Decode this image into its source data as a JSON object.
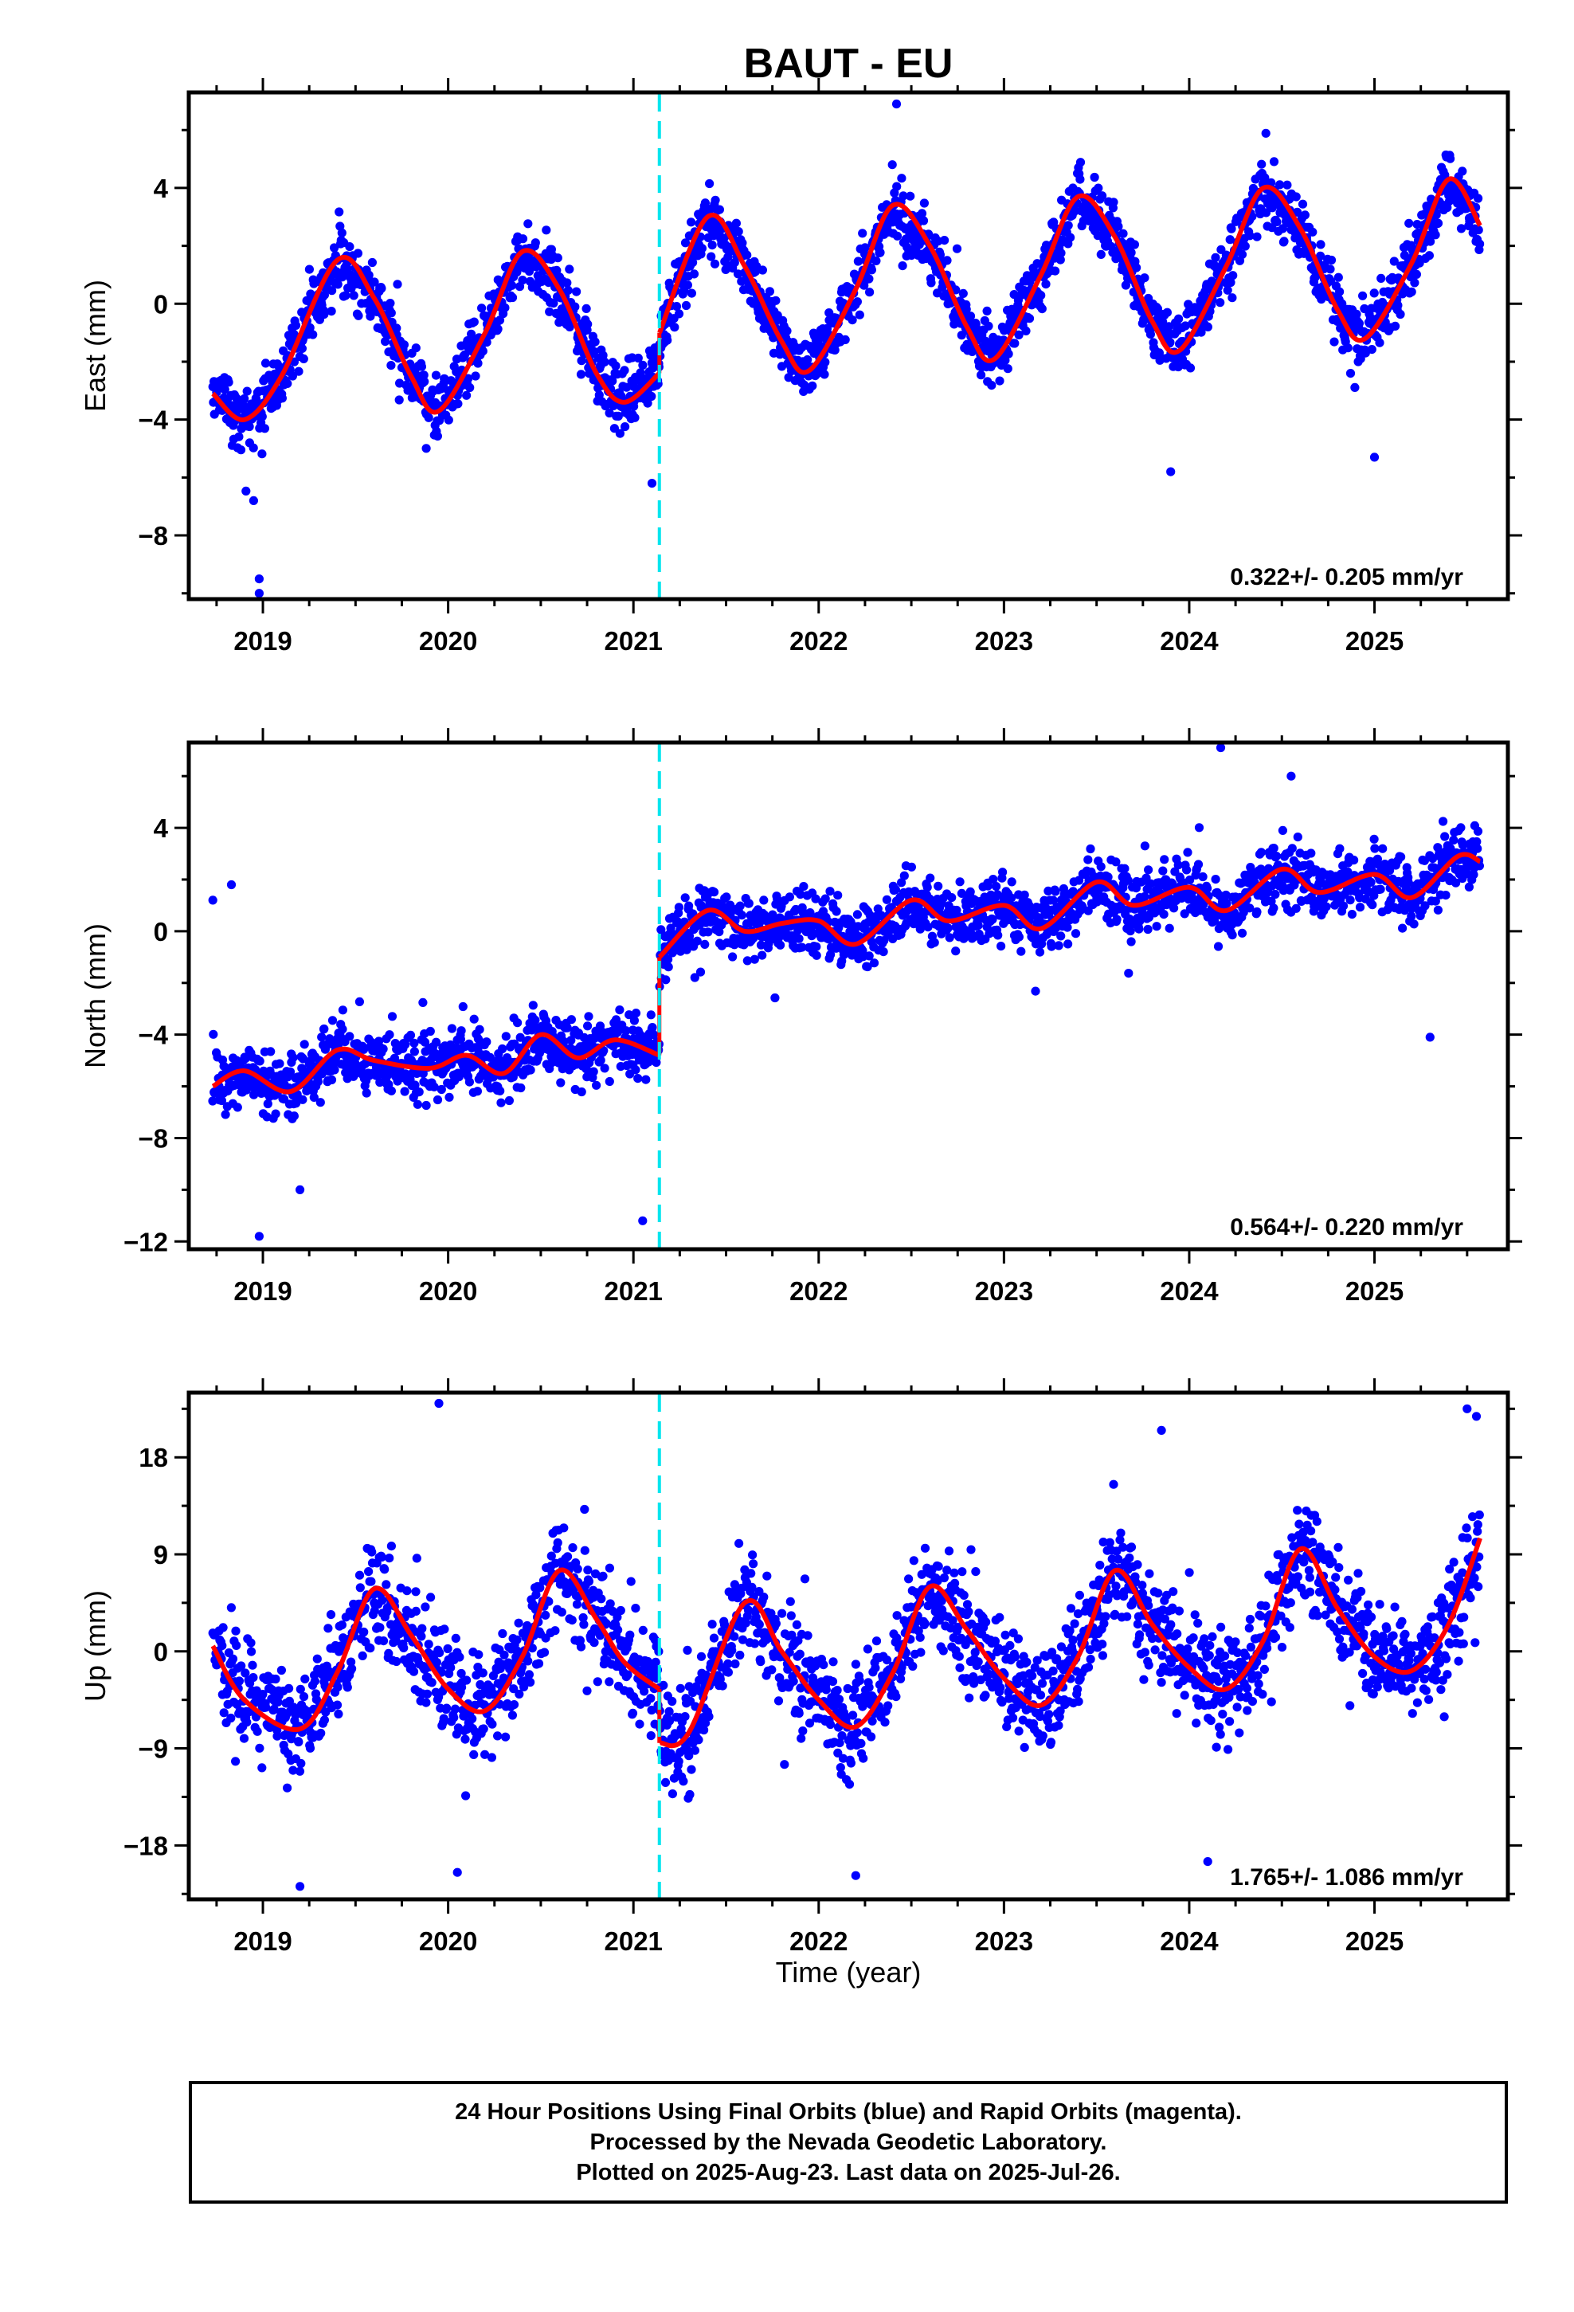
{
  "title": "BAUT - EU",
  "xlabel": "Time (year)",
  "colors": {
    "points": "#0000ff",
    "fit": "#ff0000",
    "offset_line": "#00e5ee",
    "frame": "#000000"
  },
  "caption": [
    "24 Hour Positions Using Final Orbits (blue) and Rapid Orbits (magenta).",
    "Processed by the Nevada Geodetic Laboratory.",
    "Plotted on 2025-Aug-23. Last data on 2025-Jul-26."
  ],
  "chart_data": [
    {
      "type": "scatter",
      "ylabel": "East (mm)",
      "xlim": [
        2018.6,
        2025.72
      ],
      "ylim": [
        -10.2,
        7.3
      ],
      "yticks": [
        4,
        0,
        -4,
        -8
      ],
      "xticks": [
        2019,
        2020,
        2021,
        2022,
        2023,
        2024,
        2025
      ],
      "rate": "0.322+/- 0.205 mm/yr",
      "offset_epoch": 2021.14,
      "data_start": 2018.73,
      "data_end": 2025.57,
      "series": [
        {
          "name": "",
          "fit": {
            "x": [
              2018.73,
              2018.9,
              2019.1,
              2019.4,
              2019.6,
              2019.8,
              2019.95,
              2020.2,
              2020.4,
              2020.6,
              2020.8,
              2020.95,
              2021.14,
              2021.141,
              2021.4,
              2021.6,
              2021.8,
              2021.95,
              2022.2,
              2022.4,
              2022.6,
              2022.8,
              2022.95,
              2023.2,
              2023.4,
              2023.6,
              2023.8,
              2023.95,
              2024.2,
              2024.4,
              2024.6,
              2024.8,
              2024.95,
              2025.2,
              2025.4,
              2025.57
            ],
            "y": [
              -3.1,
              -4.0,
              -2.5,
              1.5,
              0.2,
              -2.5,
              -3.7,
              -1.0,
              1.8,
              0.5,
              -2.4,
              -3.4,
              -2.4,
              -1.0,
              3.0,
              1.3,
              -1.3,
              -2.3,
              0.5,
              3.4,
              2.0,
              -0.8,
              -1.9,
              1.0,
              3.7,
              2.3,
              -0.6,
              -1.6,
              1.3,
              4.0,
              2.6,
              -0.2,
              -1.2,
              1.4,
              4.3,
              2.7
            ]
          },
          "scatter": {
            "amp": 2.8,
            "trend": 0.32,
            "base": -1.7,
            "noise": 0.9,
            "count": 2300,
            "seed": 11,
            "step": 1.4
          },
          "outliers": [
            [
              2018.98,
              -9.5
            ],
            [
              2018.98,
              -10.0
            ],
            [
              2018.95,
              -6.8
            ],
            [
              2021.1,
              -6.2
            ],
            [
              2023.9,
              -5.8
            ],
            [
              2025.0,
              -5.3
            ],
            [
              2022.42,
              6.9
            ]
          ]
        }
      ]
    },
    {
      "type": "scatter",
      "ylabel": "North (mm)",
      "xlim": [
        2018.6,
        2025.72
      ],
      "ylim": [
        -12.3,
        7.3
      ],
      "yticks": [
        4,
        0,
        -4,
        -8,
        -12
      ],
      "xticks": [
        2019,
        2020,
        2021,
        2022,
        2023,
        2024,
        2025
      ],
      "rate": "0.564+/- 0.220 mm/yr",
      "offset_epoch": 2021.14,
      "data_start": 2018.73,
      "data_end": 2025.57,
      "series": [
        {
          "name": "",
          "fit": {
            "x": [
              2018.73,
              2018.9,
              2019.15,
              2019.4,
              2019.6,
              2019.9,
              2020.1,
              2020.3,
              2020.5,
              2020.7,
              2020.9,
              2021.14,
              2021.141,
              2021.4,
              2021.6,
              2021.8,
              2022.0,
              2022.2,
              2022.5,
              2022.7,
              2023.0,
              2023.2,
              2023.5,
              2023.7,
              2024.0,
              2024.2,
              2024.5,
              2024.7,
              2025.0,
              2025.2,
              2025.45,
              2025.57
            ],
            "y": [
              -6.0,
              -5.4,
              -6.2,
              -4.6,
              -5.0,
              -5.3,
              -4.8,
              -5.5,
              -4.0,
              -4.9,
              -4.2,
              -4.8,
              -1.0,
              0.8,
              0.0,
              0.3,
              0.4,
              -0.5,
              1.2,
              0.4,
              1.0,
              0.1,
              1.9,
              1.0,
              1.7,
              0.8,
              2.4,
              1.5,
              2.2,
              1.3,
              2.9,
              2.7
            ]
          },
          "scatter": {
            "amp": 0.6,
            "trend": 0.56,
            "base": 0.0,
            "noise": 1.0,
            "count": 2300,
            "seed": 23,
            "step": 1.6
          },
          "outliers": [
            [
              2018.83,
              1.8
            ],
            [
              2018.73,
              1.2
            ],
            [
              2018.98,
              -11.8
            ],
            [
              2021.05,
              -11.2
            ],
            [
              2019.2,
              -10.0
            ],
            [
              2024.17,
              7.1
            ],
            [
              2024.55,
              6.0
            ],
            [
              2025.3,
              -4.1
            ]
          ]
        }
      ]
    },
    {
      "type": "scatter",
      "ylabel": "Up (mm)",
      "xlim": [
        2018.6,
        2025.72
      ],
      "ylim": [
        -23,
        24
      ],
      "yticks": [
        18,
        9,
        0,
        -9,
        -18
      ],
      "xticks": [
        2019,
        2020,
        2021,
        2022,
        2023,
        2024,
        2025
      ],
      "rate": "1.765+/- 1.086 mm/yr",
      "offset_epoch": 2021.14,
      "data_start": 2018.73,
      "data_end": 2025.57,
      "series": [
        {
          "name": "",
          "fit": {
            "x": [
              2018.73,
              2018.9,
              2019.2,
              2019.4,
              2019.6,
              2019.8,
              2020.0,
              2020.2,
              2020.4,
              2020.6,
              2020.8,
              2020.95,
              2021.14,
              2021.141,
              2021.3,
              2021.6,
              2021.8,
              2022.0,
              2022.2,
              2022.4,
              2022.6,
              2022.8,
              2023.0,
              2023.2,
              2023.4,
              2023.6,
              2023.8,
              2024.0,
              2024.2,
              2024.4,
              2024.6,
              2024.8,
              2025.0,
              2025.2,
              2025.4,
              2025.57
            ],
            "y": [
              0.5,
              -4.5,
              -7.2,
              -2.0,
              5.8,
              1.5,
              -3.5,
              -5.5,
              -0.5,
              7.5,
              3.0,
              -1.0,
              -3.5,
              -8.5,
              -7.5,
              4.5,
              0.0,
              -4.5,
              -7.0,
              -2.0,
              6.0,
              2.0,
              -2.5,
              -5.0,
              -0.5,
              7.5,
              2.5,
              -1.5,
              -3.5,
              1.0,
              9.5,
              4.0,
              -0.5,
              -1.8,
              2.5,
              10.5
            ]
          },
          "scatter": {
            "amp": 6.5,
            "trend": 1.7,
            "base": -2.0,
            "noise": 4.0,
            "count": 2200,
            "seed": 37,
            "step": 1.7
          },
          "outliers": [
            [
              2019.95,
              23.0
            ],
            [
              2020.05,
              -20.5
            ],
            [
              2022.2,
              -20.8
            ],
            [
              2019.2,
              -21.8
            ],
            [
              2025.5,
              22.5
            ],
            [
              2025.55,
              21.8
            ],
            [
              2023.85,
              20.5
            ],
            [
              2024.1,
              -19.5
            ]
          ]
        }
      ]
    }
  ]
}
